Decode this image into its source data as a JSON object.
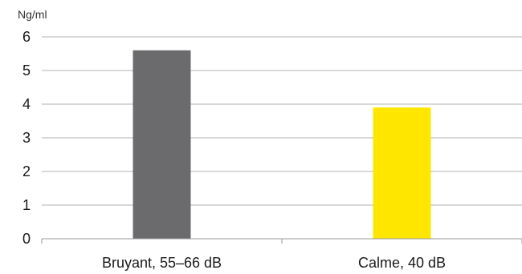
{
  "chart_data": {
    "type": "bar",
    "unit_label": "Ng/ml",
    "categories": [
      "Bruyant, 55–66 dB",
      "Calme, 40 dB"
    ],
    "values": [
      5.6,
      3.9
    ],
    "bar_colors": [
      "#6b6b6e",
      "#ffe600"
    ],
    "ylim": [
      0,
      6
    ],
    "yticks": [
      "0",
      "1",
      "2",
      "3",
      "4",
      "5",
      "6"
    ],
    "grid": true,
    "legend": "none"
  }
}
